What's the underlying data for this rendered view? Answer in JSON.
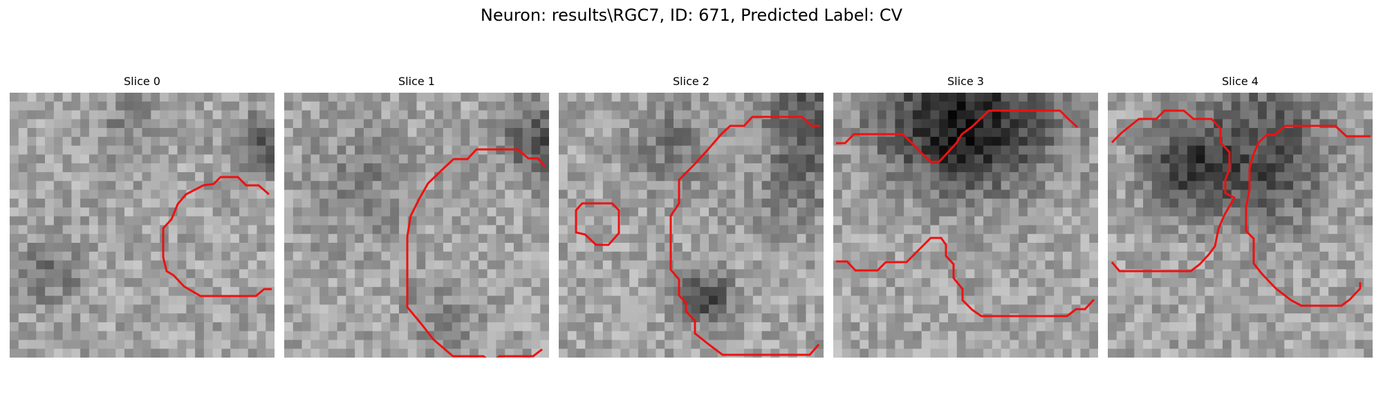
{
  "figure": {
    "title": "Neuron: results\\RGC7, ID: 671, Predicted Label: CV",
    "colormap": "gray",
    "contour_color": "#ee1111",
    "panels": [
      {
        "title": "Slice 0",
        "seed": 101,
        "dark_blobs": [
          [
            0.96,
            0.2,
            0.08,
            70
          ],
          [
            0.16,
            0.68,
            0.09,
            45
          ],
          [
            0.45,
            0.12,
            0.09,
            30
          ]
        ]
      },
      {
        "title": "Slice 1",
        "seed": 202,
        "dark_blobs": [
          [
            0.97,
            0.18,
            0.1,
            85
          ],
          [
            0.3,
            0.35,
            0.14,
            35
          ],
          [
            0.6,
            0.85,
            0.1,
            30
          ]
        ]
      },
      {
        "title": "Slice 2",
        "seed": 303,
        "dark_blobs": [
          [
            0.95,
            0.08,
            0.12,
            85
          ],
          [
            0.55,
            0.77,
            0.07,
            95
          ],
          [
            0.43,
            0.2,
            0.12,
            45
          ],
          [
            0.9,
            0.35,
            0.12,
            40
          ]
        ]
      },
      {
        "title": "Slice 3",
        "seed": 404,
        "dark_blobs": [
          [
            0.35,
            0.1,
            0.18,
            80
          ],
          [
            0.65,
            0.1,
            0.18,
            80
          ],
          [
            0.5,
            0.2,
            0.12,
            40
          ]
        ]
      },
      {
        "title": "Slice 4",
        "seed": 505,
        "dark_blobs": [
          [
            0.3,
            0.27,
            0.12,
            95
          ],
          [
            0.6,
            0.1,
            0.18,
            60
          ],
          [
            0.6,
            0.35,
            0.14,
            55
          ]
        ]
      }
    ]
  }
}
